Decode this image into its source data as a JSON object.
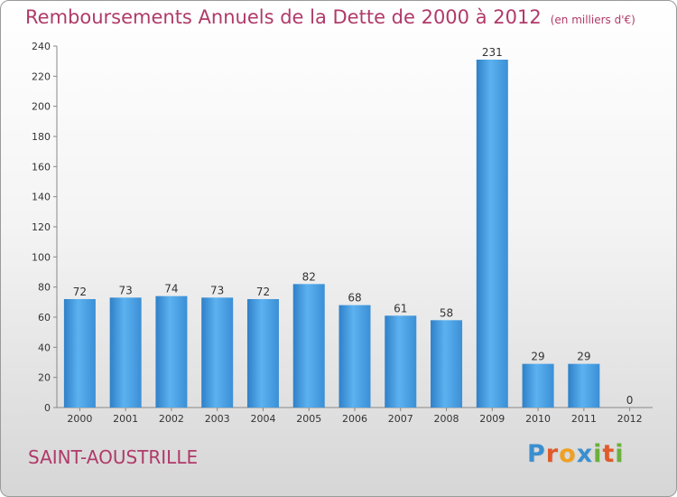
{
  "title": "Remboursements Annuels de la Dette de 2000 à 2012",
  "subtitle": "(en milliers d'€)",
  "city": "SAINT-AOUSTRILLE",
  "logo": {
    "letters": [
      {
        "ch": "P",
        "color": "#3a8fd0"
      },
      {
        "ch": "r",
        "color": "#e05a2a"
      },
      {
        "ch": "o",
        "color": "#f0a020"
      },
      {
        "ch": "x",
        "color": "#3a8fd0"
      },
      {
        "ch": "i",
        "color": "#6ab03a"
      },
      {
        "ch": "t",
        "color": "#e05a2a"
      },
      {
        "ch": "i",
        "color": "#6ab03a"
      }
    ]
  },
  "chart_data": {
    "type": "bar",
    "title": "Remboursements Annuels de la Dette de 2000 à 2012",
    "categories": [
      "2000",
      "2001",
      "2002",
      "2003",
      "2004",
      "2005",
      "2006",
      "2007",
      "2008",
      "2009",
      "2010",
      "2011",
      "2012"
    ],
    "values": [
      72,
      73,
      74,
      73,
      72,
      82,
      68,
      61,
      58,
      231,
      29,
      29,
      0
    ],
    "ylim": [
      0,
      240
    ],
    "yticks": [
      0,
      20,
      40,
      60,
      80,
      100,
      120,
      140,
      160,
      180,
      200,
      220,
      240
    ],
    "xlabel": "",
    "ylabel": "",
    "bar_color": "#4aa3e6",
    "grid": false,
    "data_labels": true
  }
}
